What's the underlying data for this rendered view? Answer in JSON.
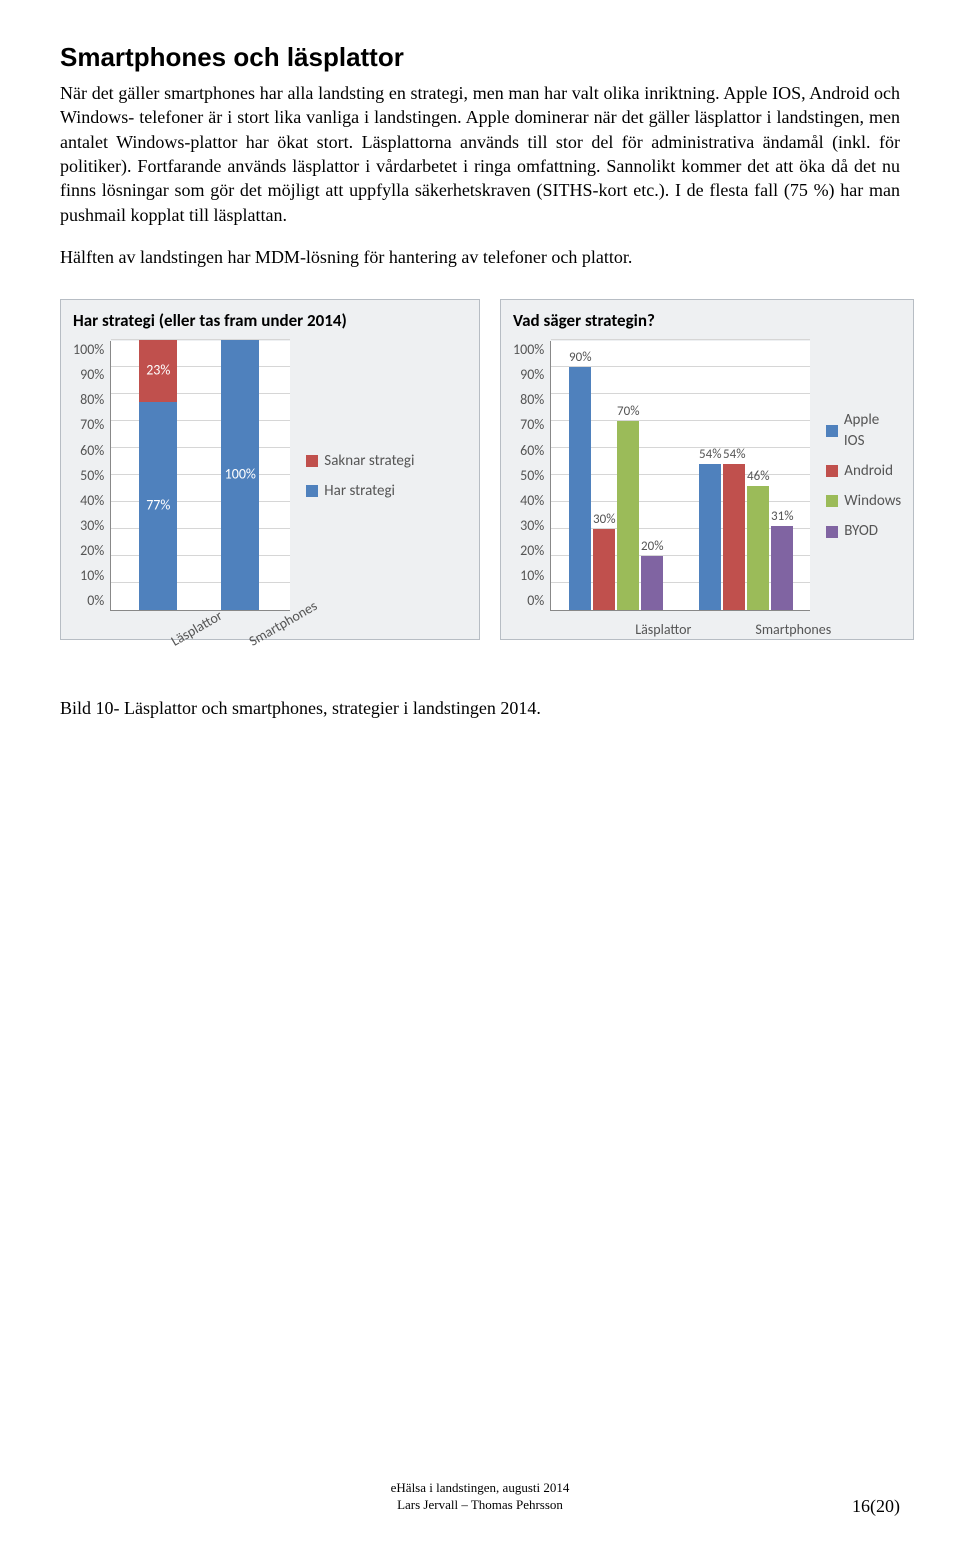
{
  "heading": "Smartphones och läsplattor",
  "para1": "När det gäller smartphones har alla landsting en strategi, men man har valt olika inriktning. Apple IOS, Android och Windows- telefoner är i stort lika vanliga i landstingen. Apple dominerar när det gäller läsplattor i landstingen, men antalet Windows-plattor har ökat stort. Läsplattorna används till stor del för administrativa ändamål (inkl. för politiker). Fortfarande används läsplattor i vårdarbetet i ringa omfattning. Sannolikt kommer det att öka då det nu finns lösningar som gör det möjligt att uppfylla säkerhetskraven (SITHS-kort etc.). I de flesta fall (75 %) har man pushmail kopplat till läsplattan.",
  "para2": "Hälften av landstingen har MDM-lösning för hantering av telefoner och plattor.",
  "chart1": {
    "title": "Har strategi (eller tas fram under 2014)",
    "ylim": [
      0,
      100
    ],
    "ytick_step": 10,
    "yticks_labels": [
      "0%",
      "10%",
      "20%",
      "30%",
      "40%",
      "50%",
      "60%",
      "70%",
      "80%",
      "90%",
      "100%"
    ],
    "categories": [
      "Läsplattor",
      "Smartphones"
    ],
    "bars": [
      {
        "har": 77,
        "saknar": 23,
        "har_label": "77%",
        "saknar_label": "23%"
      },
      {
        "har": 100,
        "saknar": 0,
        "har_label": "100%",
        "saknar_label": ""
      }
    ],
    "legend": [
      {
        "label": "Saknar strategi",
        "color": "#c0504d"
      },
      {
        "label": "Har strategi",
        "color": "#4f81bd"
      }
    ],
    "panel_bg": "#eef0f2",
    "plot_bg": "#ffffff",
    "grid_color": "#d6d6d6"
  },
  "chart2": {
    "title": "Vad säger strategin?",
    "ylim": [
      0,
      100
    ],
    "ytick_step": 10,
    "yticks_labels": [
      "0%",
      "10%",
      "20%",
      "30%",
      "40%",
      "50%",
      "60%",
      "70%",
      "80%",
      "90%",
      "100%"
    ],
    "categories": [
      "Läsplattor",
      "Smartphones"
    ],
    "series": [
      {
        "name": "Apple IOS",
        "color": "#4f81bd",
        "values": [
          90,
          54
        ],
        "labels": [
          "90%",
          "54%"
        ]
      },
      {
        "name": "Android",
        "color": "#c0504d",
        "values": [
          30,
          54
        ],
        "labels": [
          "30%",
          "54%"
        ]
      },
      {
        "name": "Windows",
        "color": "#9bbb59",
        "values": [
          70,
          46
        ],
        "labels": [
          "70%",
          "46%"
        ]
      },
      {
        "name": "BYOD",
        "color": "#8064a2",
        "values": [
          20,
          31
        ],
        "labels": [
          "20%",
          "31%"
        ]
      }
    ],
    "panel_bg": "#eef0f2",
    "plot_bg": "#ffffff",
    "grid_color": "#d6d6d6"
  },
  "caption": "Bild 10- Läsplattor och smartphones, strategier i landstingen 2014.",
  "footer_line1": "eHälsa i landstingen, augusti 2014",
  "footer_line2": "Lars Jervall – Thomas Pehrsson",
  "page_number": "16(20)"
}
